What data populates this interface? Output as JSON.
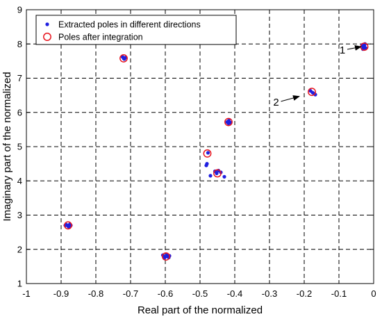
{
  "chart_data": {
    "type": "scatter",
    "xlabel": "Real part of the normalized",
    "ylabel": "Imaginary part of the normalized",
    "xlim": [
      -1,
      0
    ],
    "ylim": [
      1,
      9
    ],
    "x_ticks": [
      "-1",
      "-0.9",
      "-0.8",
      "-0.7",
      "-0.6",
      "-0.5",
      "-0.4",
      "-0.3",
      "-0.2",
      "-0.1",
      "0"
    ],
    "y_ticks": [
      "1",
      "2",
      "3",
      "4",
      "5",
      "6",
      "7",
      "8",
      "9"
    ],
    "grid": true,
    "legend": "top-left",
    "series": [
      {
        "name": "Extracted poles in different directions",
        "color": "#1f1fe0",
        "marker": "dot",
        "points": [
          [
            -0.885,
            2.72
          ],
          [
            -0.88,
            2.68
          ],
          [
            -0.875,
            2.73
          ],
          [
            -0.888,
            2.7
          ],
          [
            -0.878,
            2.66
          ],
          [
            -0.872,
            2.7
          ],
          [
            -0.607,
            1.83
          ],
          [
            -0.6,
            1.78
          ],
          [
            -0.595,
            1.84
          ],
          [
            -0.59,
            1.76
          ],
          [
            -0.603,
            1.74
          ],
          [
            -0.597,
            1.8
          ],
          [
            -0.588,
            1.81
          ],
          [
            -0.723,
            7.62
          ],
          [
            -0.718,
            7.56
          ],
          [
            -0.715,
            7.6
          ],
          [
            -0.72,
            7.58
          ],
          [
            -0.482,
            4.45
          ],
          [
            -0.48,
            4.5
          ],
          [
            -0.47,
            4.15
          ],
          [
            -0.457,
            4.28
          ],
          [
            -0.452,
            4.22
          ],
          [
            -0.447,
            4.3
          ],
          [
            -0.44,
            4.25
          ],
          [
            -0.43,
            4.12
          ],
          [
            -0.477,
            4.82
          ],
          [
            -0.422,
            5.72
          ],
          [
            -0.417,
            5.76
          ],
          [
            -0.412,
            5.7
          ],
          [
            -0.418,
            5.68
          ],
          [
            -0.182,
            6.63
          ],
          [
            -0.176,
            6.58
          ],
          [
            -0.172,
            6.55
          ],
          [
            -0.168,
            6.52
          ],
          [
            -0.033,
            7.97
          ],
          [
            -0.03,
            7.9
          ],
          [
            -0.027,
            7.95
          ],
          [
            -0.023,
            7.88
          ],
          [
            -0.031,
            7.85
          ],
          [
            -0.025,
            8.0
          ]
        ]
      },
      {
        "name": "Poles after integration",
        "color": "#e8141e",
        "marker": "circle",
        "points": [
          [
            -0.88,
            2.7
          ],
          [
            -0.598,
            1.79
          ],
          [
            -0.72,
            7.58
          ],
          [
            -0.479,
            4.8
          ],
          [
            -0.45,
            4.22
          ],
          [
            -0.418,
            5.72
          ],
          [
            -0.178,
            6.6
          ],
          [
            -0.027,
            7.92
          ]
        ]
      }
    ],
    "annotations": [
      {
        "text": "1",
        "x": -0.09,
        "y": 7.72,
        "arrow_to": [
          -0.036,
          7.92
        ]
      },
      {
        "text": "2",
        "x": -0.281,
        "y": 6.2,
        "arrow_to": [
          -0.214,
          6.47
        ]
      }
    ]
  }
}
